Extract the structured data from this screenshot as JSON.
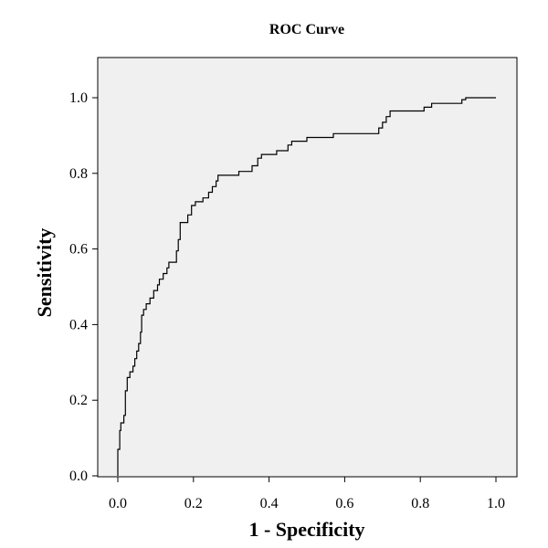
{
  "chart_data": {
    "type": "line",
    "title": "ROC Curve",
    "xlabel": "1 - Specificity",
    "ylabel": "Sensitivity",
    "xlim": [
      0.0,
      1.0
    ],
    "ylim": [
      0.0,
      1.0
    ],
    "xticks": [
      "0.0",
      "0.2",
      "0.4",
      "0.6",
      "0.8",
      "1.0"
    ],
    "yticks": [
      "0.0",
      "0.2",
      "0.4",
      "0.6",
      "0.8",
      "1.0"
    ],
    "grid": false,
    "colors": {
      "plot_background": "#f0f0f0",
      "line": "#000000",
      "frame": "#000000"
    },
    "series": [
      {
        "step": true,
        "points": [
          [
            0.0,
            0.0
          ],
          [
            0.0,
            0.07
          ],
          [
            0.005,
            0.07
          ],
          [
            0.005,
            0.12
          ],
          [
            0.008,
            0.12
          ],
          [
            0.008,
            0.14
          ],
          [
            0.016,
            0.14
          ],
          [
            0.016,
            0.16
          ],
          [
            0.02,
            0.16
          ],
          [
            0.02,
            0.225
          ],
          [
            0.025,
            0.225
          ],
          [
            0.025,
            0.26
          ],
          [
            0.032,
            0.26
          ],
          [
            0.032,
            0.275
          ],
          [
            0.04,
            0.275
          ],
          [
            0.04,
            0.29
          ],
          [
            0.045,
            0.29
          ],
          [
            0.045,
            0.31
          ],
          [
            0.05,
            0.31
          ],
          [
            0.05,
            0.33
          ],
          [
            0.055,
            0.33
          ],
          [
            0.055,
            0.35
          ],
          [
            0.06,
            0.35
          ],
          [
            0.06,
            0.38
          ],
          [
            0.063,
            0.38
          ],
          [
            0.063,
            0.425
          ],
          [
            0.068,
            0.425
          ],
          [
            0.068,
            0.44
          ],
          [
            0.075,
            0.44
          ],
          [
            0.075,
            0.455
          ],
          [
            0.085,
            0.455
          ],
          [
            0.085,
            0.47
          ],
          [
            0.095,
            0.47
          ],
          [
            0.095,
            0.49
          ],
          [
            0.105,
            0.49
          ],
          [
            0.105,
            0.505
          ],
          [
            0.11,
            0.505
          ],
          [
            0.11,
            0.52
          ],
          [
            0.12,
            0.52
          ],
          [
            0.12,
            0.535
          ],
          [
            0.13,
            0.535
          ],
          [
            0.13,
            0.55
          ],
          [
            0.135,
            0.55
          ],
          [
            0.135,
            0.565
          ],
          [
            0.155,
            0.565
          ],
          [
            0.155,
            0.595
          ],
          [
            0.16,
            0.595
          ],
          [
            0.16,
            0.625
          ],
          [
            0.165,
            0.625
          ],
          [
            0.165,
            0.67
          ],
          [
            0.185,
            0.67
          ],
          [
            0.185,
            0.69
          ],
          [
            0.195,
            0.69
          ],
          [
            0.195,
            0.715
          ],
          [
            0.205,
            0.715
          ],
          [
            0.205,
            0.725
          ],
          [
            0.225,
            0.725
          ],
          [
            0.225,
            0.735
          ],
          [
            0.24,
            0.735
          ],
          [
            0.24,
            0.75
          ],
          [
            0.25,
            0.75
          ],
          [
            0.25,
            0.765
          ],
          [
            0.26,
            0.765
          ],
          [
            0.26,
            0.78
          ],
          [
            0.265,
            0.78
          ],
          [
            0.265,
            0.795
          ],
          [
            0.32,
            0.795
          ],
          [
            0.32,
            0.805
          ],
          [
            0.355,
            0.805
          ],
          [
            0.355,
            0.82
          ],
          [
            0.37,
            0.82
          ],
          [
            0.37,
            0.84
          ],
          [
            0.38,
            0.84
          ],
          [
            0.38,
            0.85
          ],
          [
            0.42,
            0.85
          ],
          [
            0.42,
            0.86
          ],
          [
            0.45,
            0.86
          ],
          [
            0.45,
            0.875
          ],
          [
            0.46,
            0.875
          ],
          [
            0.46,
            0.885
          ],
          [
            0.5,
            0.885
          ],
          [
            0.5,
            0.895
          ],
          [
            0.57,
            0.895
          ],
          [
            0.57,
            0.905
          ],
          [
            0.69,
            0.905
          ],
          [
            0.69,
            0.92
          ],
          [
            0.7,
            0.92
          ],
          [
            0.7,
            0.935
          ],
          [
            0.71,
            0.935
          ],
          [
            0.71,
            0.95
          ],
          [
            0.72,
            0.95
          ],
          [
            0.72,
            0.965
          ],
          [
            0.81,
            0.965
          ],
          [
            0.81,
            0.975
          ],
          [
            0.83,
            0.975
          ],
          [
            0.83,
            0.985
          ],
          [
            0.91,
            0.985
          ],
          [
            0.91,
            0.995
          ],
          [
            0.92,
            0.995
          ],
          [
            0.92,
            1.0
          ],
          [
            1.0,
            1.0
          ]
        ]
      }
    ]
  }
}
